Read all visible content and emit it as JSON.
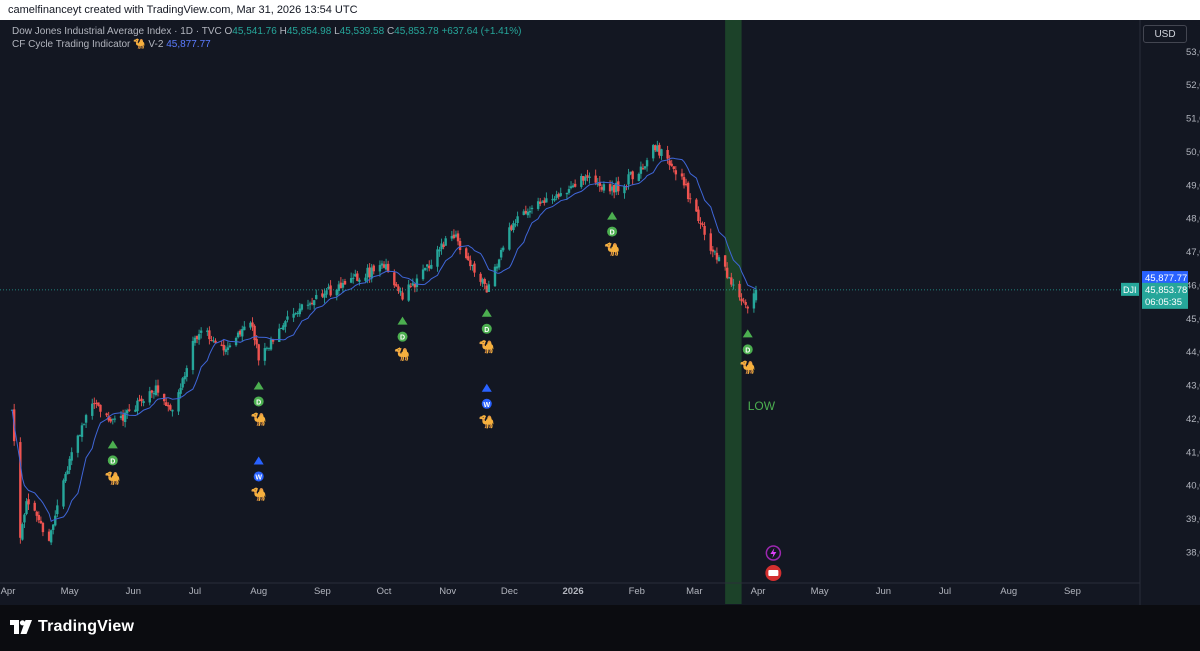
{
  "header": {
    "caption": "camelfinanceyt created with TradingView.com, Mar 31, 2026 13:54 UTC"
  },
  "legend": {
    "symbol_line": "Dow Jones Industrial Average Index · 1D · TVC",
    "open_label": "O",
    "open": "45,541.76",
    "high_label": "H",
    "high": "45,854.98",
    "low_label": "L",
    "low": "45,539.58",
    "close_label": "C",
    "close": "45,853.78",
    "change": "+637.64 (+1.41%)",
    "indicator_name": "CF Cycle Trading Indicator",
    "indicator_icon": "camel-icon",
    "indicator_version": "V-2",
    "indicator_value": "45,877.77"
  },
  "currency_button": "USD",
  "price_axis": {
    "labels": [
      "53,000.00",
      "52,000.00",
      "51,000.00",
      "50,000.00",
      "49,000.00",
      "48,000.00",
      "47,000.00",
      "46,000.00",
      "45,000.00",
      "44,000.00",
      "43,000.00",
      "42,000.00",
      "41,000.00",
      "40,000.00",
      "39,000.00",
      "38,000.00"
    ]
  },
  "price_tags": {
    "indicator": "45,877.77",
    "symbol": "DJI",
    "last_price": "45,853.78",
    "countdown": "06:05:35"
  },
  "time_axis": {
    "labels": [
      "Apr",
      "May",
      "Jun",
      "Jul",
      "Aug",
      "Sep",
      "Oct",
      "Nov",
      "Dec",
      "2026",
      "Feb",
      "Mar",
      "Apr",
      "May",
      "Jun",
      "Jul",
      "Aug",
      "Sep"
    ]
  },
  "annotations": {
    "low_label": "LOW"
  },
  "markers": [
    {
      "type": "D",
      "label": "D"
    },
    {
      "type": "W",
      "label": "W"
    }
  ],
  "brand": {
    "name": "TradingView"
  },
  "colors": {
    "background": "#131722",
    "up": "#26a69a",
    "down": "#ef5350",
    "moving_average": "#3f66d8",
    "daily_marker": "#4caf50",
    "weekly_marker": "#2962ff",
    "cycle_zone": "#1e4a2a",
    "camel": "#f6b21a"
  },
  "chart_data": {
    "type": "candlestick",
    "title": "Dow Jones Industrial Average Index",
    "timeframe": "1D",
    "exchange": "TVC",
    "x_range": [
      "2025-04",
      "2026-09"
    ],
    "ylim": [
      37100,
      53700
    ],
    "grid": false,
    "anchors": [
      {
        "date": "2025-04-03",
        "close": 42200
      },
      {
        "date": "2025-04-07",
        "close": 38500
      },
      {
        "date": "2025-04-10",
        "close": 39600
      },
      {
        "date": "2025-04-21",
        "close": 38400
      },
      {
        "date": "2025-05-01",
        "close": 40800
      },
      {
        "date": "2025-05-12",
        "close": 42500
      },
      {
        "date": "2025-05-22",
        "close": 41900
      },
      {
        "date": "2025-06-01",
        "close": 42300
      },
      {
        "date": "2025-06-12",
        "close": 42900
      },
      {
        "date": "2025-06-20",
        "close": 42200
      },
      {
        "date": "2025-07-03",
        "close": 44700
      },
      {
        "date": "2025-07-15",
        "close": 44100
      },
      {
        "date": "2025-07-28",
        "close": 44900
      },
      {
        "date": "2025-08-01",
        "close": 43800
      },
      {
        "date": "2025-08-14",
        "close": 44900
      },
      {
        "date": "2025-08-28",
        "close": 45600
      },
      {
        "date": "2025-09-12",
        "close": 46000
      },
      {
        "date": "2025-10-02",
        "close": 46600
      },
      {
        "date": "2025-10-10",
        "close": 45600
      },
      {
        "date": "2025-10-24",
        "close": 46700
      },
      {
        "date": "2025-11-03",
        "close": 47600
      },
      {
        "date": "2025-11-20",
        "close": 45800
      },
      {
        "date": "2025-12-03",
        "close": 47900
      },
      {
        "date": "2025-12-12",
        "close": 48400
      },
      {
        "date": "2025-12-24",
        "close": 48600
      },
      {
        "date": "2026-01-05",
        "close": 49300
      },
      {
        "date": "2026-01-20",
        "close": 48800
      },
      {
        "date": "2026-02-02",
        "close": 49400
      },
      {
        "date": "2026-02-10",
        "close": 50100
      },
      {
        "date": "2026-02-23",
        "close": 49200
      },
      {
        "date": "2026-03-06",
        "close": 47500
      },
      {
        "date": "2026-03-17",
        "close": 46300
      },
      {
        "date": "2026-03-27",
        "close": 45200
      },
      {
        "date": "2026-03-31",
        "close": 45853.78
      }
    ],
    "moving_average": {
      "name": "CF Cycle Trading Indicator V-2",
      "last": 45877.77
    },
    "last_bar": {
      "open": 45541.76,
      "high": 45854.98,
      "low": 45539.58,
      "close": 45853.78,
      "change": 637.64,
      "change_pct": 1.41
    },
    "cycle_signals": [
      {
        "date": "2025-05-22",
        "cycle": "D"
      },
      {
        "date": "2025-08-01",
        "cycle": "D"
      },
      {
        "date": "2025-08-01",
        "cycle": "W"
      },
      {
        "date": "2025-10-10",
        "cycle": "D"
      },
      {
        "date": "2025-11-20",
        "cycle": "D"
      },
      {
        "date": "2025-11-20",
        "cycle": "W"
      },
      {
        "date": "2026-01-20",
        "cycle": "D"
      },
      {
        "date": "2026-03-27",
        "cycle": "D"
      }
    ],
    "highlight_zone": {
      "start": "2026-03-16",
      "end": "2026-03-24",
      "label": "LOW"
    }
  }
}
